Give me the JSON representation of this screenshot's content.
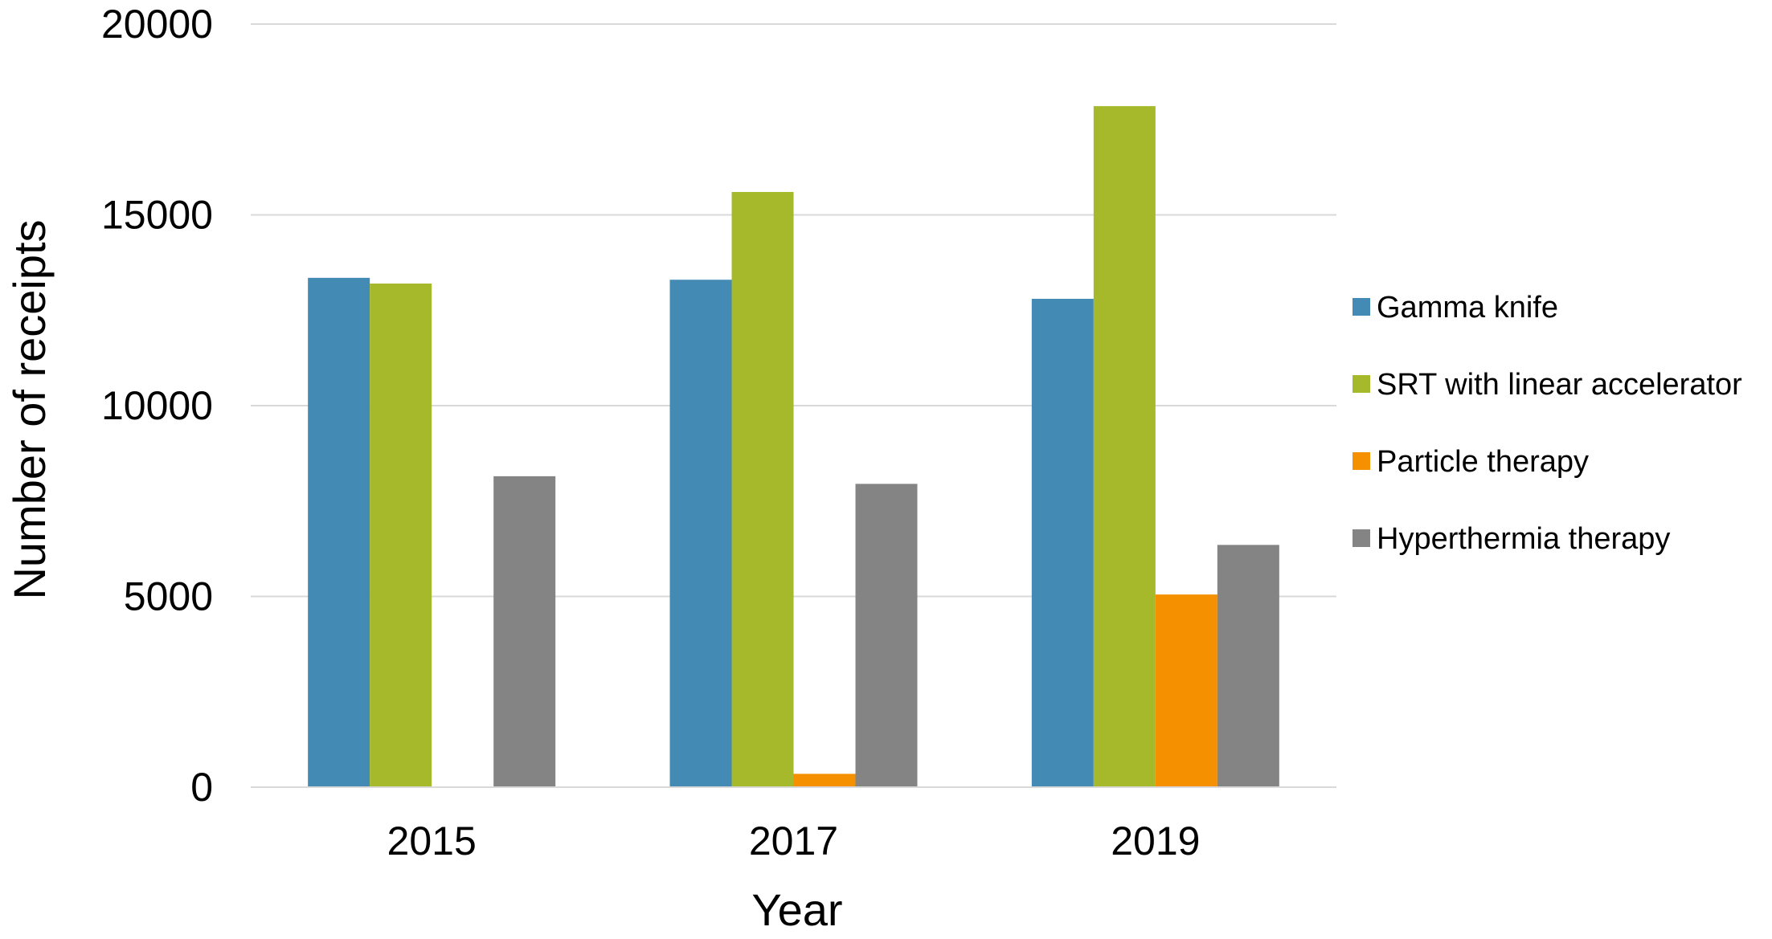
{
  "chart_data": {
    "type": "bar",
    "title": "",
    "xlabel": "Year",
    "ylabel": "Number of receipts",
    "categories": [
      "2015",
      "2017",
      "2019"
    ],
    "ylim": [
      0,
      20000
    ],
    "yticks": [
      0,
      5000,
      10000,
      15000,
      20000
    ],
    "grid": true,
    "legend_position": "right",
    "series": [
      {
        "name": "Gamma knife",
        "color": "#438ab5",
        "values": [
          13350,
          13300,
          12800
        ]
      },
      {
        "name": "SRT with linear accelerator",
        "color": "#a5b92a",
        "values": [
          13200,
          15600,
          17850
        ]
      },
      {
        "name": "Particle therapy",
        "color": "#f59100",
        "values": [
          0,
          350,
          5050
        ]
      },
      {
        "name": "Hyperthermia therapy",
        "color": "#848484",
        "values": [
          8150,
          7950,
          6350
        ]
      }
    ]
  }
}
